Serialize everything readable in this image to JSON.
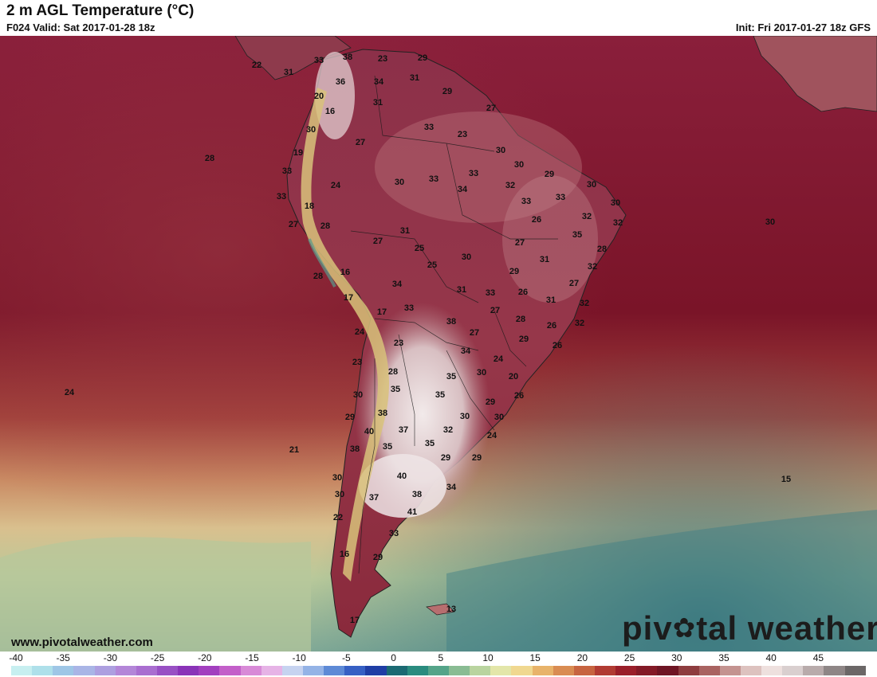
{
  "header": {
    "title": "2 m AGL Temperature (°C)",
    "valid": "F024 Valid: Sat 2017-01-28 18z",
    "init": "Init: Fri 2017-01-27 18z GFS"
  },
  "footer": {
    "website": "www.pivotalweather.com",
    "brand_left": "piv",
    "brand_right": "tal weather"
  },
  "legend": {
    "ticks": [
      "-40",
      "-35",
      "-30",
      "-25",
      "-20",
      "-15",
      "-10",
      "-5",
      "0",
      "5",
      "10",
      "15",
      "20",
      "25",
      "30",
      "35",
      "40",
      "45"
    ],
    "colors": [
      "#c7eff0",
      "#aee0ea",
      "#9ec6e6",
      "#a9b5e6",
      "#ad9fe0",
      "#b386d8",
      "#a96ed0",
      "#9850c4",
      "#8a33b8",
      "#a23fbf",
      "#c35fc9",
      "#d88ad7",
      "#e6b3e6",
      "#c6d3f0",
      "#94b3e6",
      "#5d8ad6",
      "#3660c4",
      "#1f3ea5",
      "#1b6a73",
      "#2a8c7f",
      "#54a489",
      "#89bc93",
      "#b9d49f",
      "#e3e6a9",
      "#f0d890",
      "#e8b36a",
      "#d98c52",
      "#c76440",
      "#b13b33",
      "#9a1f2a",
      "#831a27",
      "#6e1524",
      "#8e3d3f",
      "#a96361",
      "#c49390",
      "#ddc2bf",
      "#eee0de",
      "#d9cfcf",
      "#b8abab",
      "#8e8686",
      "#6b6767"
    ]
  },
  "map_labels": [
    "22",
    "33",
    "38",
    "23",
    "29",
    "31",
    "36",
    "34",
    "31",
    "20",
    "29",
    "16",
    "31",
    "27",
    "33",
    "30",
    "23",
    "27",
    "30",
    "19",
    "28",
    "29",
    "33",
    "30",
    "33",
    "30",
    "33",
    "34",
    "32",
    "30",
    "33",
    "24",
    "33",
    "18",
    "33",
    "32",
    "30",
    "27",
    "32",
    "28",
    "31",
    "26",
    "27",
    "30",
    "25",
    "35",
    "28",
    "27",
    "25",
    "30",
    "31",
    "32",
    "16",
    "28",
    "34",
    "29",
    "27",
    "17",
    "31",
    "33",
    "26",
    "31",
    "17",
    "33",
    "32",
    "27",
    "28",
    "38",
    "27",
    "26",
    "32",
    "24",
    "29",
    "23",
    "34",
    "26",
    "24",
    "23",
    "30",
    "35",
    "20",
    "28",
    "35",
    "24",
    "30",
    "35",
    "29",
    "26",
    "29",
    "38",
    "30",
    "40",
    "37",
    "32",
    "30",
    "35",
    "35",
    "24",
    "38",
    "21",
    "29",
    "29",
    "30",
    "40",
    "30",
    "38",
    "34",
    "37",
    "22",
    "41",
    "33",
    "16",
    "29",
    "17",
    "13",
    "15"
  ]
}
